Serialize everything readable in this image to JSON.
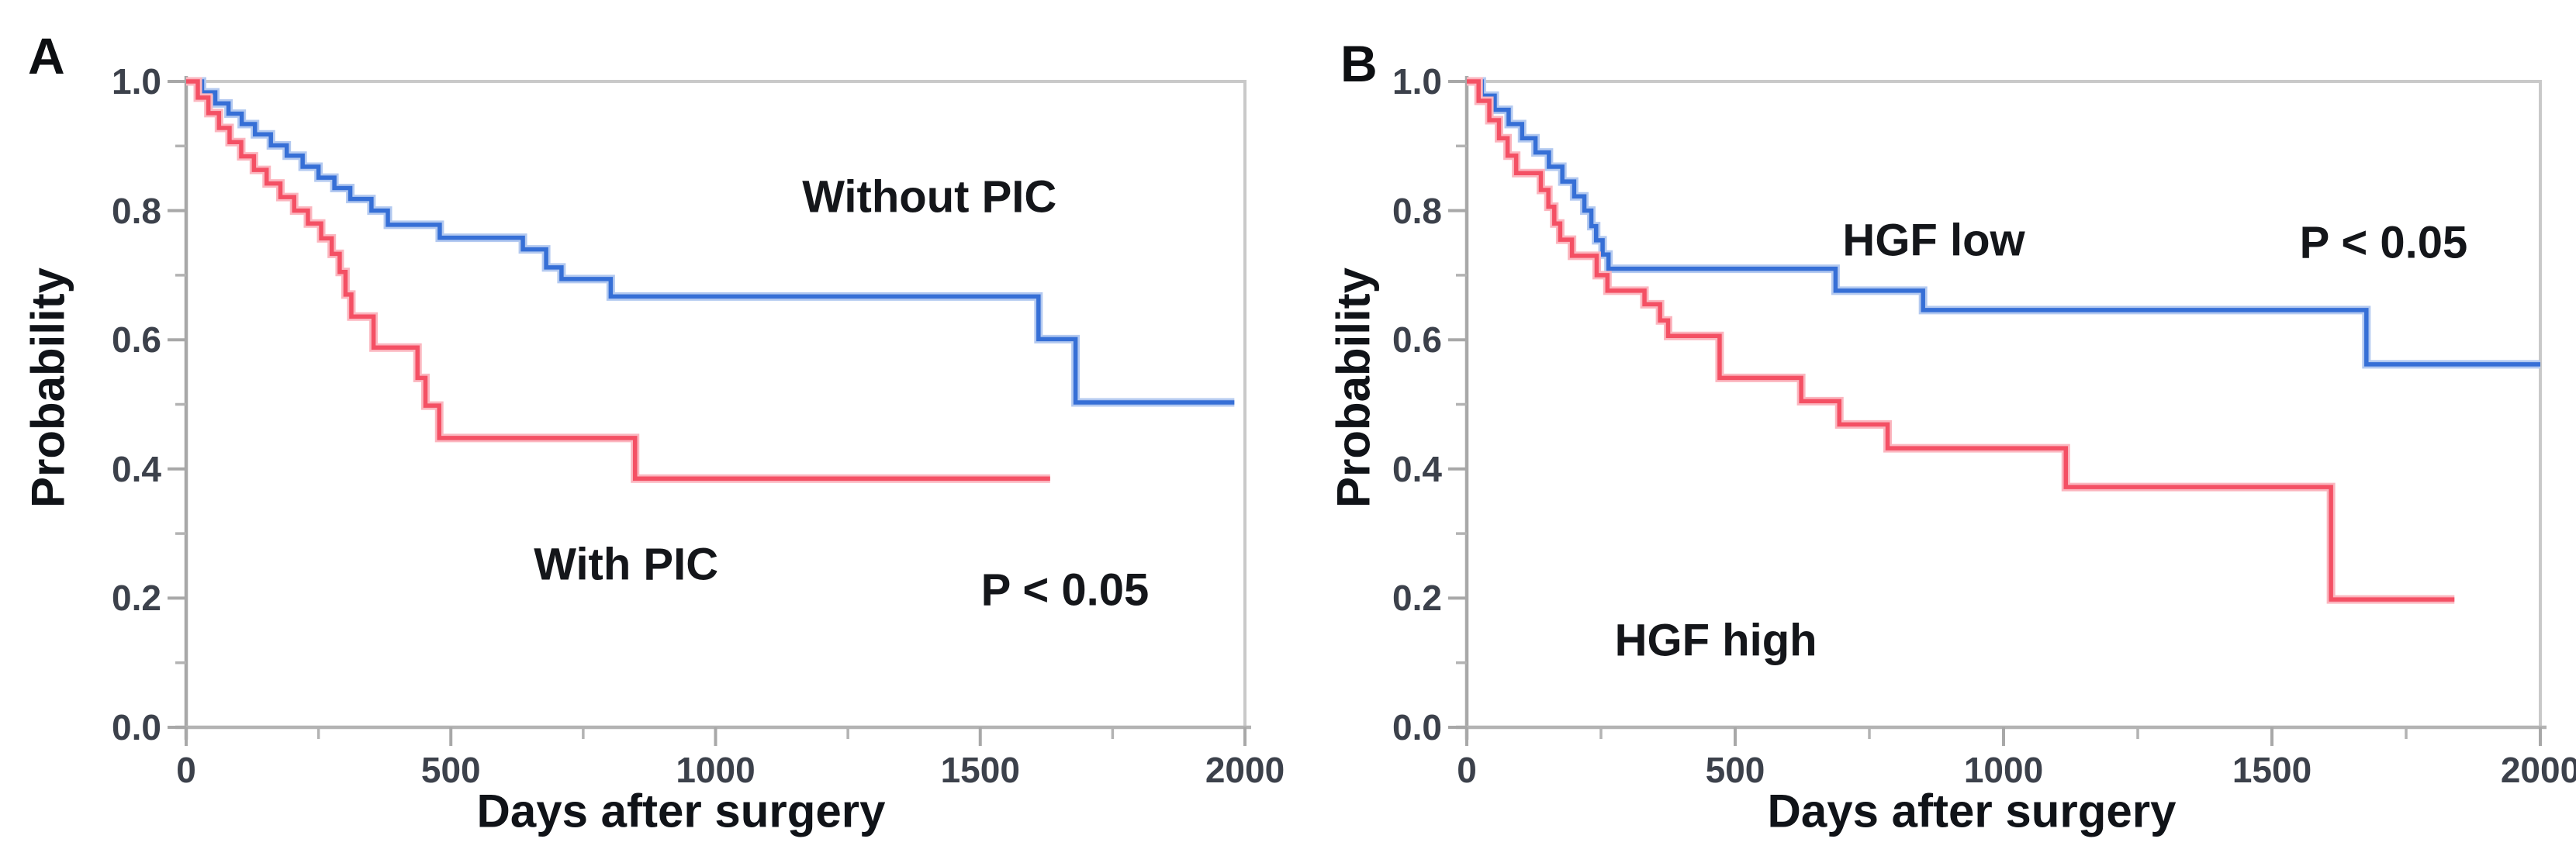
{
  "figure": {
    "type": "kaplan-meier-survival-curves",
    "background": "#ffffff"
  },
  "chart_data": [
    {
      "type": "line",
      "subtype": "kaplan-meier-step",
      "panel_letter": "A",
      "xlabel": "Days after surgery",
      "ylabel": "Probability",
      "xlim": [
        0,
        2000
      ],
      "ylim": [
        0.0,
        1.0
      ],
      "x_ticks": [
        0,
        500,
        1000,
        1500,
        2000
      ],
      "x_tick_labels": [
        "0",
        "500",
        "1000",
        "1500",
        "2000"
      ],
      "x_minor_ticks": [
        250,
        750,
        1250,
        1750
      ],
      "y_ticks": [
        1.0,
        0.8,
        0.6,
        0.4,
        0.2,
        0.0
      ],
      "y_tick_labels": [
        "1.0",
        "0.8",
        "0.6",
        "0.4",
        "0.2",
        "0.0"
      ],
      "y_minor_ticks": [
        0.9,
        0.7,
        0.5,
        0.3,
        0.1
      ],
      "grid": false,
      "legend_position": "in-plot-annotations",
      "p_value_label": "P < 0.05",
      "annotations": [
        {
          "text": "Without PIC",
          "day": 1404,
          "prob": 0.821
        },
        {
          "text": "With PIC",
          "day": 831,
          "prob": 0.252
        },
        {
          "text": "P < 0.05",
          "day": 1660,
          "prob": 0.212
        }
      ],
      "series": [
        {
          "name": "Without PIC",
          "color": "#366fd6",
          "halo_color": "#b3c9f0",
          "end_day": 1980,
          "steps": [
            [
              0,
              1.0
            ],
            [
              30,
              0.983
            ],
            [
              55,
              0.966
            ],
            [
              80,
              0.95
            ],
            [
              105,
              0.934
            ],
            [
              130,
              0.918
            ],
            [
              160,
              0.901
            ],
            [
              190,
              0.885
            ],
            [
              220,
              0.868
            ],
            [
              250,
              0.851
            ],
            [
              280,
              0.835
            ],
            [
              310,
              0.818
            ],
            [
              350,
              0.8
            ],
            [
              381,
              0.778
            ],
            [
              479,
              0.758
            ],
            [
              636,
              0.74
            ],
            [
              680,
              0.712
            ],
            [
              709,
              0.694
            ],
            [
              802,
              0.667
            ],
            [
              1610,
              0.601
            ],
            [
              1680,
              0.503
            ]
          ]
        },
        {
          "name": "With PIC",
          "color": "#f45064",
          "halo_color": "#fbb6bf",
          "end_day": 1632,
          "steps": [
            [
              0,
              1.0
            ],
            [
              22,
              0.975
            ],
            [
              42,
              0.951
            ],
            [
              62,
              0.928
            ],
            [
              82,
              0.906
            ],
            [
              104,
              0.884
            ],
            [
              128,
              0.863
            ],
            [
              152,
              0.842
            ],
            [
              178,
              0.821
            ],
            [
              204,
              0.8
            ],
            [
              230,
              0.78
            ],
            [
              255,
              0.757
            ],
            [
              275,
              0.733
            ],
            [
              290,
              0.705
            ],
            [
              301,
              0.67
            ],
            [
              312,
              0.636
            ],
            [
              354,
              0.588
            ],
            [
              437,
              0.541
            ],
            [
              452,
              0.498
            ],
            [
              478,
              0.448
            ],
            [
              848,
              0.385
            ]
          ]
        }
      ]
    },
    {
      "type": "line",
      "subtype": "kaplan-meier-step",
      "panel_letter": "B",
      "xlabel": "Days after surgery",
      "ylabel": "Probability",
      "xlim": [
        0,
        2000
      ],
      "ylim": [
        0.0,
        1.0
      ],
      "x_ticks": [
        0,
        500,
        1000,
        1500,
        2000
      ],
      "x_tick_labels": [
        "0",
        "500",
        "1000",
        "1500",
        "2000"
      ],
      "x_minor_ticks": [
        250,
        750,
        1250,
        1750
      ],
      "y_ticks": [
        1.0,
        0.8,
        0.6,
        0.4,
        0.2,
        0.0
      ],
      "y_tick_labels": [
        "1.0",
        "0.8",
        "0.6",
        "0.4",
        "0.2",
        "0.0"
      ],
      "y_minor_ticks": [
        0.9,
        0.7,
        0.5,
        0.3,
        0.1
      ],
      "grid": false,
      "legend_position": "in-plot-annotations",
      "p_value_label": "P < 0.05",
      "annotations": [
        {
          "text": "HGF low",
          "day": 870,
          "prob": 0.754
        },
        {
          "text": "HGF high",
          "day": 464,
          "prob": 0.134
        },
        {
          "text": "P < 0.05",
          "day": 1708,
          "prob": 0.75
        }
      ],
      "series": [
        {
          "name": "HGF low",
          "color": "#366fd6",
          "halo_color": "#b3c9f0",
          "end_day": 2000,
          "steps": [
            [
              0,
              1.0
            ],
            [
              28,
              0.978
            ],
            [
              52,
              0.956
            ],
            [
              78,
              0.934
            ],
            [
              103,
              0.912
            ],
            [
              128,
              0.89
            ],
            [
              153,
              0.868
            ],
            [
              178,
              0.845
            ],
            [
              200,
              0.822
            ],
            [
              219,
              0.8
            ],
            [
              232,
              0.776
            ],
            [
              241,
              0.754
            ],
            [
              253,
              0.732
            ],
            [
              264,
              0.71
            ],
            [
              687,
              0.676
            ],
            [
              850,
              0.646
            ],
            [
              1676,
              0.562
            ]
          ]
        },
        {
          "name": "HGF high",
          "color": "#f45064",
          "halo_color": "#fbb6bf",
          "end_day": 1840,
          "steps": [
            [
              0,
              1.0
            ],
            [
              22,
              0.97
            ],
            [
              42,
              0.94
            ],
            [
              60,
              0.912
            ],
            [
              76,
              0.885
            ],
            [
              92,
              0.858
            ],
            [
              138,
              0.832
            ],
            [
              152,
              0.806
            ],
            [
              163,
              0.78
            ],
            [
              174,
              0.755
            ],
            [
              196,
              0.73
            ],
            [
              242,
              0.7
            ],
            [
              262,
              0.676
            ],
            [
              331,
              0.655
            ],
            [
              360,
              0.63
            ],
            [
              375,
              0.606
            ],
            [
              471,
              0.541
            ],
            [
              623,
              0.505
            ],
            [
              694,
              0.469
            ],
            [
              784,
              0.432
            ],
            [
              1116,
              0.372
            ],
            [
              1610,
              0.198
            ]
          ]
        }
      ]
    }
  ]
}
